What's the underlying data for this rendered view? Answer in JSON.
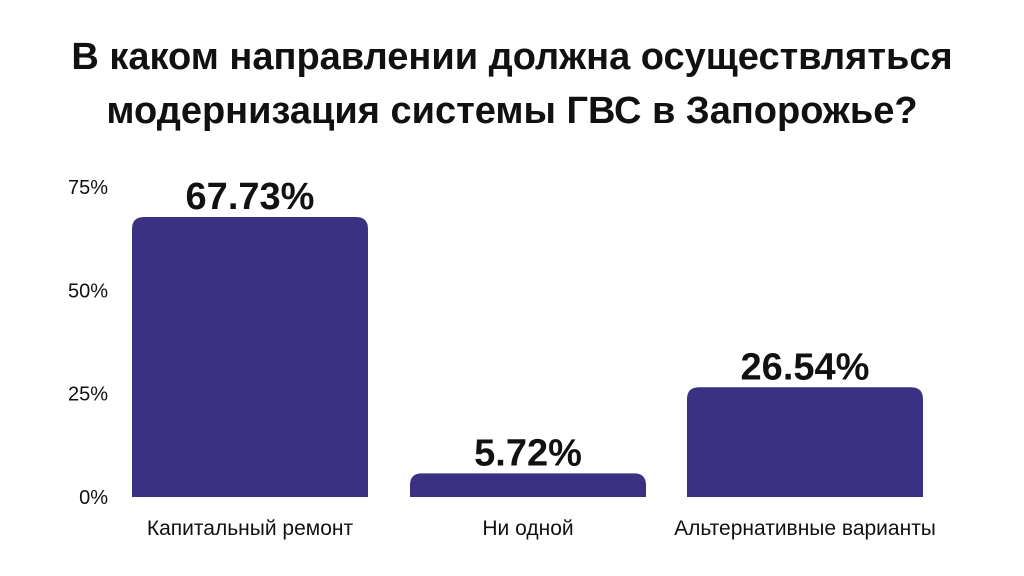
{
  "chart_data": {
    "type": "bar",
    "title_lines": [
      "В каком направлении должна осуществляться",
      "модернизация системы ГВС в Запорожье?"
    ],
    "categories": [
      "Капитальный ремонт",
      "Ни одной",
      "Альтернативные варианты"
    ],
    "values": [
      67.73,
      5.72,
      26.54
    ],
    "data_labels": [
      "67.73%",
      "5.72%",
      "26.54%"
    ],
    "y_ticks": [
      0,
      25,
      50,
      75
    ],
    "y_tick_labels": [
      "0%",
      "25%",
      "50%",
      "75%"
    ],
    "ylim": [
      0,
      75
    ],
    "grid": false,
    "legend": "none",
    "bar_color": "#3b3183"
  }
}
